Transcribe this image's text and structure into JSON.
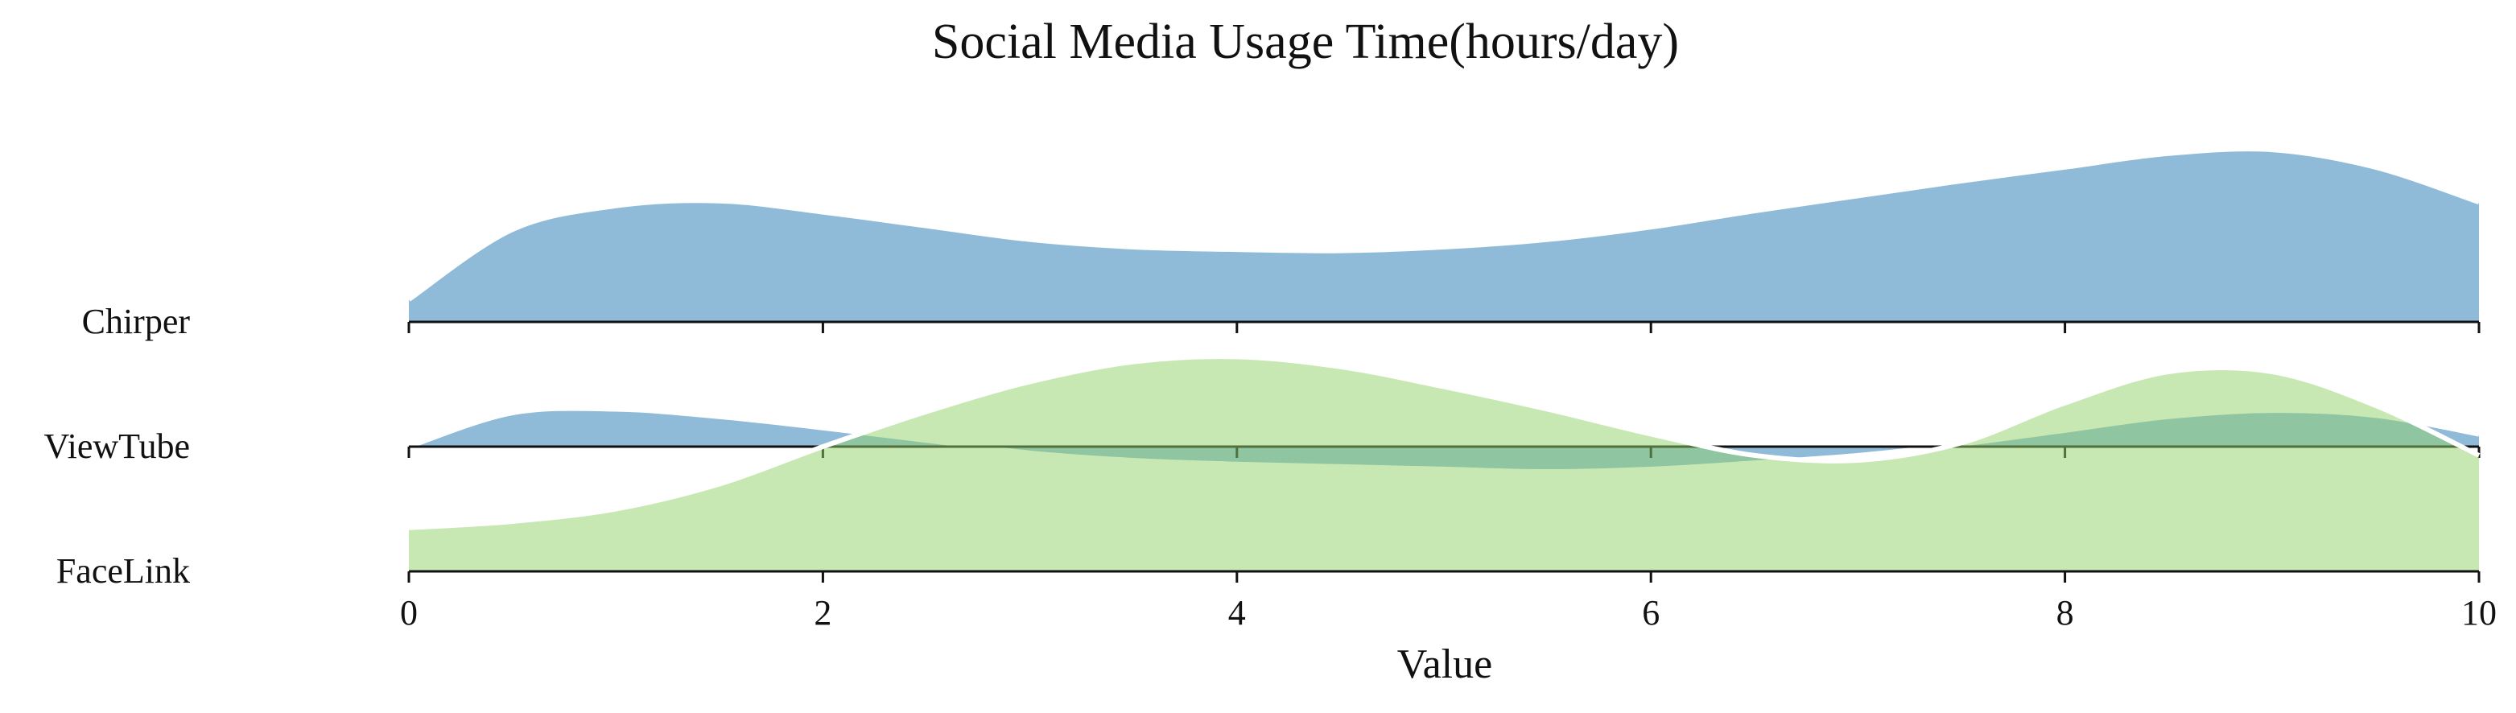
{
  "chart_data": {
    "type": "area",
    "subtype": "ridgeline",
    "title": "Social Media Usage Time(hours/day)",
    "xlabel": "Value",
    "ylabel": "",
    "xlim": [
      0,
      10
    ],
    "xticks": [
      "0",
      "2",
      "4",
      "6",
      "8",
      "10"
    ],
    "grid": false,
    "legend": "none",
    "series": [
      {
        "name": "Chirper",
        "color": "#1f77b4",
        "x": [
          0,
          0.5,
          1,
          1.5,
          2,
          2.5,
          3,
          3.5,
          4,
          4.5,
          5,
          5.5,
          6,
          6.5,
          7,
          7.5,
          8,
          8.5,
          9,
          9.5,
          10
        ],
        "values": [
          0.18,
          0.74,
          0.93,
          0.97,
          0.88,
          0.77,
          0.66,
          0.6,
          0.58,
          0.57,
          0.6,
          0.66,
          0.76,
          0.89,
          1.01,
          1.13,
          1.24,
          1.35,
          1.38,
          1.24,
          0.96
        ]
      },
      {
        "name": "ViewTube",
        "color": "#1f77b4",
        "x": [
          0,
          0.5,
          1,
          1.5,
          2,
          2.5,
          3,
          3.5,
          4,
          4.5,
          5,
          5.5,
          6,
          6.5,
          7,
          7.5,
          8,
          8.5,
          9,
          9.5,
          10
        ],
        "values": [
          0.0,
          0.27,
          0.3,
          0.24,
          0.15,
          0.05,
          -0.05,
          -0.11,
          -0.14,
          -0.16,
          -0.18,
          -0.2,
          -0.18,
          -0.13,
          -0.07,
          0.02,
          0.13,
          0.24,
          0.29,
          0.25,
          0.1
        ]
      },
      {
        "name": "FaceLink",
        "color": "#8fcf67",
        "x": [
          0,
          0.5,
          1,
          1.5,
          2,
          2.5,
          3,
          3.5,
          4,
          4.5,
          5,
          5.5,
          6,
          6.5,
          7,
          7.5,
          8,
          8.5,
          9,
          9.5,
          10
        ],
        "values": [
          0.35,
          0.4,
          0.5,
          0.7,
          1.0,
          1.28,
          1.52,
          1.68,
          1.72,
          1.64,
          1.48,
          1.3,
          1.1,
          0.93,
          0.89,
          1.03,
          1.35,
          1.6,
          1.6,
          1.33,
          0.93
        ]
      }
    ]
  }
}
